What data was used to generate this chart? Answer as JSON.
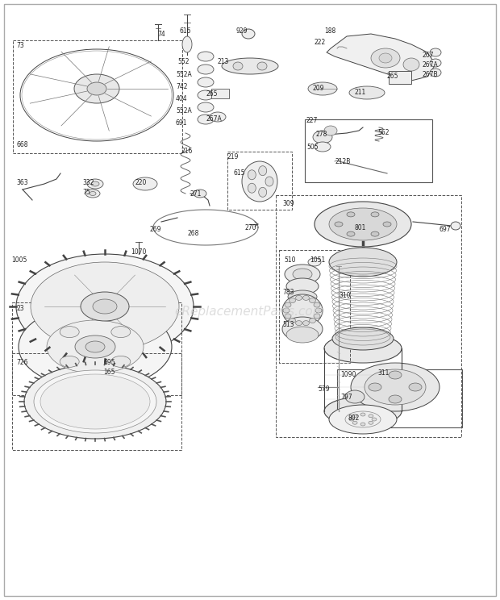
{
  "bg_color": "#ffffff",
  "fig_w": 6.2,
  "fig_h": 7.44,
  "dpi": 100,
  "watermark": "eReplacementParts.com",
  "border": [
    8,
    8,
    612,
    736
  ],
  "parts_labels": [
    [
      "74",
      195,
      38
    ],
    [
      "73",
      20,
      52
    ],
    [
      "668",
      20,
      175
    ],
    [
      "363",
      20,
      222
    ],
    [
      "332",
      102,
      222
    ],
    [
      "75",
      102,
      234
    ],
    [
      "220",
      168,
      222
    ],
    [
      "1005",
      14,
      318
    ],
    [
      "1070",
      162,
      308
    ],
    [
      "616",
      223,
      34
    ],
    [
      "929",
      293,
      34
    ],
    [
      "552",
      220,
      72
    ],
    [
      "552A",
      218,
      88
    ],
    [
      "742",
      218,
      103
    ],
    [
      "404",
      218,
      118
    ],
    [
      "552A",
      218,
      133
    ],
    [
      "691",
      218,
      148
    ],
    [
      "216",
      225,
      183
    ],
    [
      "213",
      270,
      72
    ],
    [
      "265",
      256,
      112
    ],
    [
      "267A",
      256,
      143
    ],
    [
      "271",
      236,
      236
    ],
    [
      "269",
      186,
      280
    ],
    [
      "268",
      233,
      285
    ],
    [
      "270",
      304,
      278
    ],
    [
      "219",
      282,
      190
    ],
    [
      "615",
      290,
      210
    ],
    [
      "188",
      402,
      34
    ],
    [
      "222",
      390,
      48
    ],
    [
      "265",
      480,
      90
    ],
    [
      "267",
      524,
      64
    ],
    [
      "267A",
      524,
      76
    ],
    [
      "267B",
      524,
      88
    ],
    [
      "209",
      388,
      105
    ],
    [
      "211",
      440,
      110
    ],
    [
      "227",
      380,
      145
    ],
    [
      "278",
      392,
      162
    ],
    [
      "562",
      468,
      160
    ],
    [
      "505",
      380,
      178
    ],
    [
      "212B",
      416,
      196
    ],
    [
      "309",
      350,
      248
    ],
    [
      "801",
      440,
      278
    ],
    [
      "697",
      545,
      280
    ],
    [
      "510",
      352,
      318
    ],
    [
      "1051",
      384,
      318
    ],
    [
      "783",
      350,
      358
    ],
    [
      "310",
      420,
      362
    ],
    [
      "513",
      350,
      398
    ],
    [
      "1090",
      422,
      460
    ],
    [
      "311",
      468,
      458
    ],
    [
      "579",
      394,
      478
    ],
    [
      "797",
      422,
      488
    ],
    [
      "802",
      432,
      514
    ],
    [
      "23",
      20,
      378
    ],
    [
      "726",
      20,
      445
    ],
    [
      "695",
      128,
      445
    ],
    [
      "165",
      128,
      457
    ]
  ]
}
